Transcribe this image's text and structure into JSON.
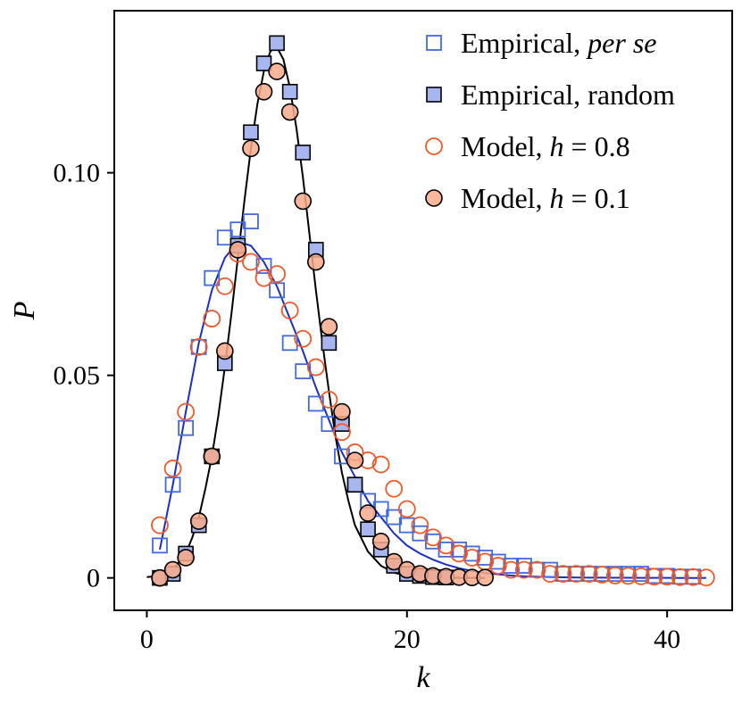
{
  "chart_data": {
    "type": "scatter",
    "title": "",
    "xlabel": "k",
    "ylabel": "P",
    "xlim": [
      -2.5,
      45
    ],
    "ylim": [
      -0.008,
      0.14
    ],
    "grid": false,
    "legend_position": "top-right",
    "x_ticks": [
      {
        "value": 0,
        "label": "0"
      },
      {
        "value": 20,
        "label": "20"
      },
      {
        "value": 40,
        "label": "40"
      }
    ],
    "y_ticks": [
      {
        "value": 0,
        "label": "0"
      },
      {
        "value": 0.05,
        "label": "0.05"
      },
      {
        "value": 0.1,
        "label": "0.10"
      }
    ],
    "series": [
      {
        "name": "Empirical, per se",
        "legend_plain": "Empirical, ",
        "legend_italic": "per se",
        "marker": "square",
        "filled": false,
        "color": "#4169e1",
        "fill": "none",
        "x": [
          1,
          2,
          3,
          4,
          5,
          6,
          7,
          8,
          9,
          10,
          11,
          12,
          13,
          14,
          15,
          16,
          17,
          18,
          19,
          20,
          21,
          22,
          23,
          24,
          25,
          26,
          27,
          28,
          29,
          30,
          31,
          32,
          33,
          34,
          35,
          36,
          37,
          38,
          39,
          40,
          41,
          42
        ],
        "y": [
          0.008,
          0.023,
          0.037,
          0.057,
          0.074,
          0.084,
          0.086,
          0.088,
          0.077,
          0.071,
          0.058,
          0.051,
          0.043,
          0.038,
          0.03,
          0.023,
          0.019,
          0.017,
          0.015,
          0.013,
          0.011,
          0.009,
          0.007,
          0.007,
          0.006,
          0.005,
          0.004,
          0.003,
          0.003,
          0.002,
          0.002,
          0.001,
          0.001,
          0.001,
          0.001,
          0.001,
          0.001,
          0.001,
          0.0005,
          0.0005,
          0.0003,
          0.0003
        ]
      },
      {
        "name": "Empirical, random",
        "legend_plain": "Empirical, random",
        "legend_italic": "",
        "marker": "square",
        "filled": true,
        "color": "#000000",
        "fill": "#a7b6ef",
        "x": [
          1,
          2,
          3,
          4,
          5,
          6,
          7,
          8,
          9,
          10,
          11,
          12,
          13,
          14,
          15,
          16,
          17,
          18,
          19,
          20,
          21,
          22,
          23
        ],
        "y": [
          0.0,
          0.001,
          0.006,
          0.013,
          0.03,
          0.053,
          0.082,
          0.11,
          0.127,
          0.132,
          0.12,
          0.105,
          0.081,
          0.058,
          0.038,
          0.023,
          0.012,
          0.007,
          0.003,
          0.001,
          0.0005,
          0.0002,
          0.0001
        ]
      },
      {
        "name": "Model, h = 0.8",
        "legend_plain": "Model, ",
        "legend_italic": "h",
        "legend_tail": " = 0.8",
        "marker": "circle",
        "filled": false,
        "color": "#f05a28",
        "fill": "none",
        "x": [
          1,
          2,
          3,
          4,
          5,
          6,
          7,
          8,
          9,
          10,
          11,
          12,
          13,
          14,
          15,
          16,
          17,
          18,
          19,
          20,
          21,
          22,
          23,
          24,
          25,
          26,
          27,
          28,
          29,
          30,
          31,
          32,
          33,
          34,
          35,
          36,
          37,
          38,
          39,
          40,
          41,
          42,
          43
        ],
        "y": [
          0.013,
          0.027,
          0.041,
          0.057,
          0.064,
          0.072,
          0.08,
          0.078,
          0.074,
          0.075,
          0.066,
          0.059,
          0.052,
          0.044,
          0.036,
          0.031,
          0.029,
          0.028,
          0.022,
          0.017,
          0.013,
          0.01,
          0.008,
          0.006,
          0.005,
          0.004,
          0.003,
          0.002,
          0.002,
          0.002,
          0.001,
          0.001,
          0.001,
          0.001,
          0.0008,
          0.0006,
          0.0005,
          0.0004,
          0.0003,
          0.0003,
          0.0002,
          0.0002,
          0.0001
        ]
      },
      {
        "name": "Model, h = 0.1",
        "legend_plain": "Model, ",
        "legend_italic": "h",
        "legend_tail": " = 0.1",
        "marker": "circle",
        "filled": true,
        "color": "#000000",
        "fill": "#f7a98a",
        "x": [
          1,
          2,
          3,
          4,
          5,
          6,
          7,
          8,
          9,
          10,
          11,
          12,
          13,
          14,
          15,
          16,
          17,
          18,
          19,
          20,
          21,
          22,
          23,
          24,
          25,
          26
        ],
        "y": [
          0.0,
          0.002,
          0.005,
          0.014,
          0.03,
          0.056,
          0.081,
          0.106,
          0.12,
          0.125,
          0.115,
          0.093,
          0.078,
          0.062,
          0.041,
          0.029,
          0.016,
          0.009,
          0.004,
          0.002,
          0.001,
          0.0005,
          0.0003,
          0.0002,
          0.0001,
          0.0001
        ]
      }
    ],
    "fit_lines": [
      {
        "color": "#1a2fc4",
        "x": [
          1,
          2,
          3,
          4,
          5,
          6,
          7,
          8,
          9,
          10,
          11,
          12,
          13,
          14,
          15,
          16,
          17,
          18,
          19,
          20,
          21,
          22,
          23,
          24,
          25,
          26,
          27,
          28,
          29,
          30,
          31,
          32,
          33,
          34,
          35,
          36,
          37,
          38,
          39,
          40,
          41,
          42,
          43
        ],
        "y": [
          0.007,
          0.023,
          0.041,
          0.058,
          0.071,
          0.079,
          0.083,
          0.082,
          0.078,
          0.072,
          0.064,
          0.056,
          0.047,
          0.039,
          0.031,
          0.025,
          0.019,
          0.015,
          0.011,
          0.008,
          0.006,
          0.0045,
          0.0033,
          0.0024,
          0.0017,
          0.0012,
          0.0009,
          0.0006,
          0.0004,
          0.0003,
          0.0002,
          0.00015,
          0.0001,
          7e-05,
          5e-05,
          4e-05,
          3e-05,
          2e-05,
          1e-05,
          1e-05,
          0.0,
          0.0,
          0.0
        ]
      },
      {
        "color": "#000000",
        "x": [
          0,
          1,
          2,
          3,
          3.5,
          4,
          4.5,
          5,
          5.5,
          6,
          6.5,
          7,
          7.5,
          8,
          8.5,
          9,
          9.5,
          10,
          10.5,
          11,
          11.5,
          12,
          12.5,
          13,
          13.5,
          14,
          14.5,
          15,
          15.5,
          16,
          17,
          18,
          19,
          20,
          21,
          22,
          23,
          24,
          25,
          26
        ],
        "y": [
          0.0002,
          0.0005,
          0.002,
          0.006,
          0.01,
          0.015,
          0.022,
          0.03,
          0.04,
          0.052,
          0.065,
          0.079,
          0.093,
          0.106,
          0.117,
          0.125,
          0.13,
          0.131,
          0.128,
          0.121,
          0.111,
          0.099,
          0.085,
          0.071,
          0.058,
          0.046,
          0.035,
          0.026,
          0.019,
          0.013,
          0.0065,
          0.003,
          0.0013,
          0.0005,
          0.0002,
          0.0001,
          4e-05,
          2e-05,
          1e-05,
          0.0
        ]
      }
    ]
  }
}
